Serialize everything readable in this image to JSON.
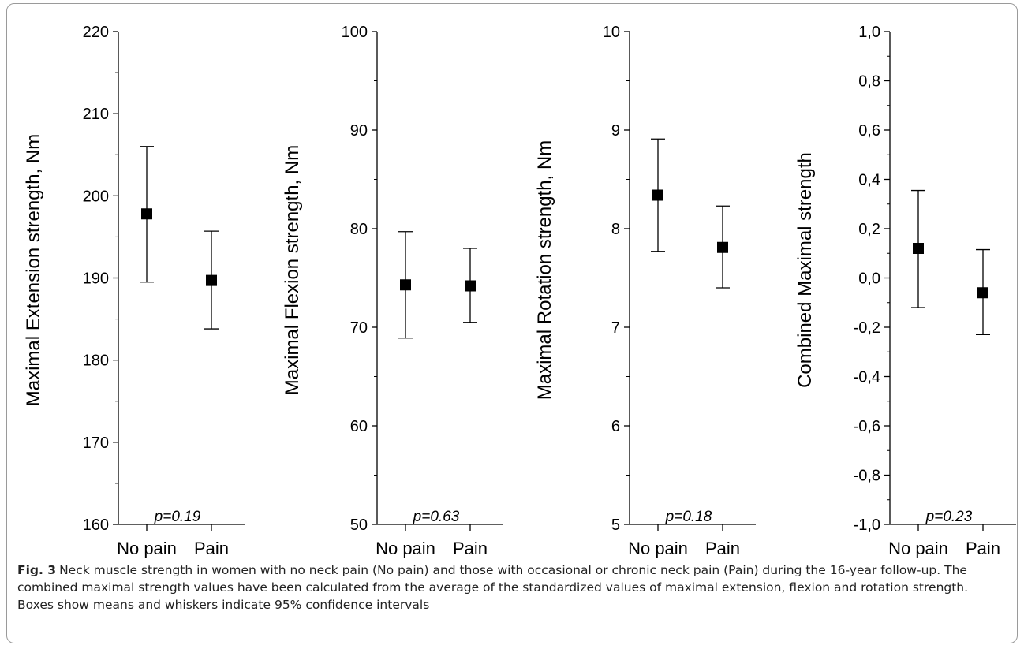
{
  "chart_data": [
    {
      "type": "scatter",
      "ylabel": "Maximal Extension strength, Nm",
      "ylim": [
        160,
        220
      ],
      "yticks": [
        160,
        170,
        180,
        190,
        200,
        210,
        220
      ],
      "categories": [
        "No pain",
        "Pain"
      ],
      "means": [
        197.8,
        189.7
      ],
      "ci_low": [
        189.5,
        183.8
      ],
      "ci_high": [
        206.0,
        195.7
      ],
      "annotation": "p=0.19"
    },
    {
      "type": "scatter",
      "ylabel": "Maximal Flexion strength, Nm",
      "ylim": [
        50,
        100
      ],
      "yticks": [
        50,
        60,
        70,
        80,
        90,
        100
      ],
      "categories": [
        "No pain",
        "Pain"
      ],
      "means": [
        74.3,
        74.2
      ],
      "ci_low": [
        68.9,
        70.5
      ],
      "ci_high": [
        79.7,
        78.0
      ],
      "annotation": "p=0.63"
    },
    {
      "type": "scatter",
      "ylabel": "Maximal Rotation strength, Nm",
      "ylim": [
        5,
        10
      ],
      "yticks": [
        5,
        6,
        7,
        8,
        9,
        10
      ],
      "categories": [
        "No pain",
        "Pain"
      ],
      "means": [
        8.34,
        7.81
      ],
      "ci_low": [
        7.77,
        7.4
      ],
      "ci_high": [
        8.91,
        8.23
      ],
      "annotation": "p=0.18"
    },
    {
      "type": "scatter",
      "ylabel": "Combined Maximal strength",
      "ylim": [
        -1.0,
        1.0
      ],
      "yticks": [
        -1.0,
        -0.8,
        -0.6,
        -0.4,
        -0.2,
        0.0,
        0.2,
        0.4,
        0.6,
        0.8,
        1.0
      ],
      "ytick_labels": [
        "-1,0",
        "-0,8",
        "-0,6",
        "-0,4",
        "-0,2",
        "0,0",
        "0,2",
        "0,4",
        "0,6",
        "0,8",
        "1,0"
      ],
      "categories": [
        "No pain",
        "Pain"
      ],
      "means": [
        0.12,
        -0.06
      ],
      "ci_low": [
        -0.12,
        -0.23
      ],
      "ci_high": [
        0.355,
        0.115
      ],
      "annotation": "p=0.23"
    }
  ],
  "caption": {
    "label": "Fig. 3",
    "text": "Neck muscle strength in women with no neck pain (No pain) and those with occasional or chronic neck pain (Pain) during the 16-year follow-up. The combined maximal strength values have been calculated from the average of the standardized values of maximal extension, flexion and rotation strength. Boxes show means and whiskers indicate 95% confidence intervals"
  }
}
